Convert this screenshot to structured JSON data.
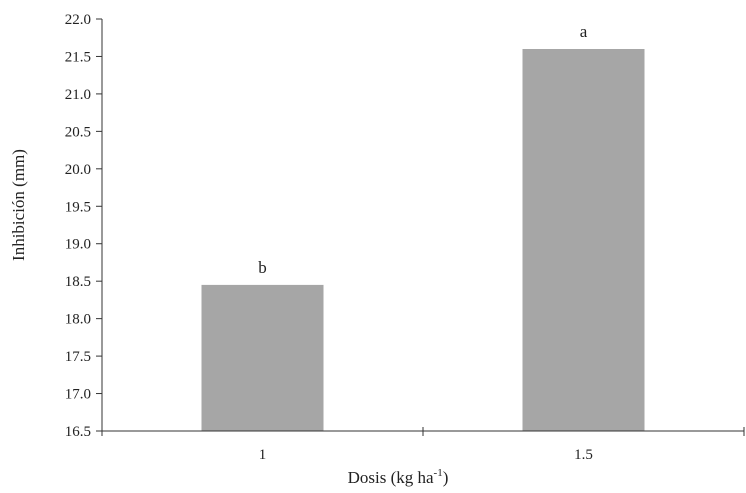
{
  "chart_data": {
    "type": "bar",
    "categories": [
      "1",
      "1.5"
    ],
    "values": [
      18.45,
      21.6
    ],
    "value_labels": [
      "b",
      "a"
    ],
    "xlabel": "Dosis (kg ha",
    "xlabel_superscript": "-1",
    "xlabel_suffix": ")",
    "ylabel": "Inhibición (mm)",
    "ylim": [
      16.5,
      22.0
    ],
    "yticks": [
      "16.5",
      "17.0",
      "17.5",
      "18.0",
      "18.5",
      "19.0",
      "19.5",
      "20.0",
      "20.5",
      "21.0",
      "21.5",
      "22.0"
    ],
    "grid": false,
    "legend": "none",
    "colors": {
      "bar": "#a6a6a6",
      "axis": "#333333"
    }
  }
}
